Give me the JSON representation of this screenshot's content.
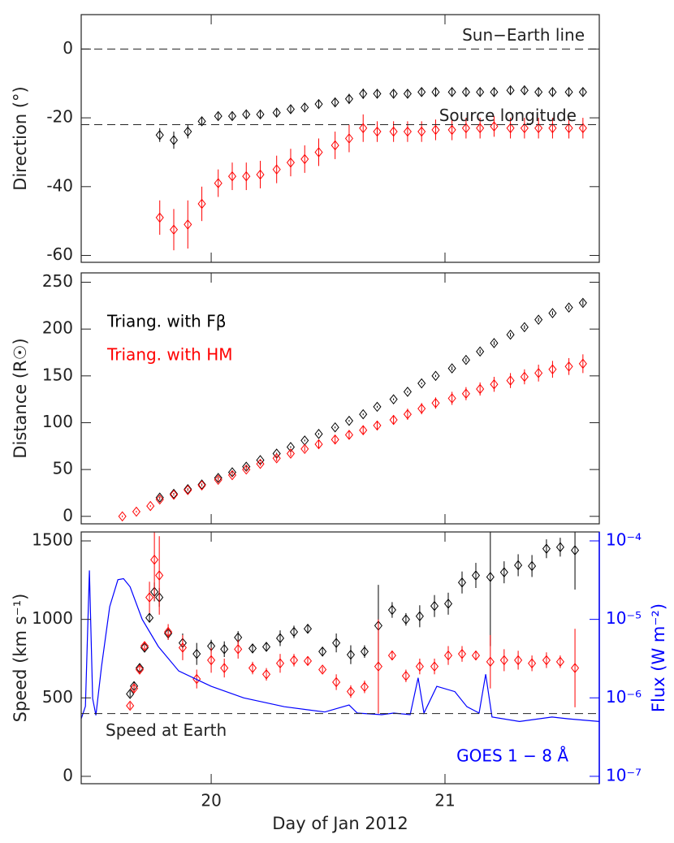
{
  "chart_data": [
    {
      "type": "scatter",
      "ylabel": "Direction (°)",
      "xlim": [
        19.444,
        21.66
      ],
      "xticks": [
        20,
        21
      ],
      "ylim": [
        -62,
        10
      ],
      "yticks": [
        -60,
        -40,
        -20,
        0
      ],
      "reference_lines": [
        {
          "value": 0,
          "label": "Sun−Earth line"
        },
        {
          "value": -22,
          "label": "Source longitude"
        }
      ],
      "series": [
        {
          "color": "#000000",
          "x": [
            19.78,
            19.84,
            19.9,
            19.96,
            20.03,
            20.09,
            20.15,
            20.21,
            20.28,
            20.34,
            20.4,
            20.46,
            20.53,
            20.59,
            20.65,
            20.71,
            20.78,
            20.84,
            20.9,
            20.96,
            21.03,
            21.09,
            21.15,
            21.21,
            21.28,
            21.34,
            21.4,
            21.46,
            21.53,
            21.59
          ],
          "values": [
            -25,
            -26.5,
            -24,
            -21,
            -19.5,
            -19.5,
            -19,
            -19,
            -18.5,
            -17.5,
            -17,
            -16,
            -15.5,
            -14.5,
            -13,
            -13,
            -13,
            -13,
            -12.5,
            -12.5,
            -12.5,
            -12.5,
            -12.5,
            -12.5,
            -12,
            -12,
            -12.5,
            -12.5,
            -12.5,
            -12.5
          ],
          "errors": [
            2,
            2.5,
            2,
            1,
            1,
            1,
            1,
            1,
            1,
            1,
            1,
            1,
            1,
            1.5,
            1.5,
            1,
            1,
            1,
            1,
            1,
            1,
            1,
            1,
            1,
            1,
            1,
            1,
            1,
            1,
            1
          ]
        },
        {
          "color": "#ff0000",
          "x": [
            19.78,
            19.84,
            19.9,
            19.96,
            20.03,
            20.09,
            20.15,
            20.21,
            20.28,
            20.34,
            20.4,
            20.46,
            20.53,
            20.59,
            20.65,
            20.71,
            20.78,
            20.84,
            20.9,
            20.96,
            21.03,
            21.09,
            21.15,
            21.21,
            21.28,
            21.34,
            21.4,
            21.46,
            21.53,
            21.59
          ],
          "values": [
            -49,
            -52.5,
            -51,
            -45,
            -39,
            -37,
            -37,
            -36.5,
            -35,
            -33,
            -32,
            -30,
            -28,
            -26,
            -23,
            -24,
            -24,
            -24,
            -24,
            -23.5,
            -23.5,
            -23,
            -23,
            -22.5,
            -23,
            -23,
            -23,
            -23,
            -23,
            -23
          ],
          "errors": [
            5,
            6,
            7,
            5,
            4,
            4,
            4,
            4,
            4,
            4,
            4,
            4,
            4,
            4,
            4,
            3,
            3,
            3,
            3,
            3,
            3,
            3,
            3,
            3,
            3,
            3,
            3,
            3,
            3,
            3
          ]
        }
      ]
    },
    {
      "type": "scatter",
      "ylabel": "Distance (R☉)",
      "xlim": [
        19.444,
        21.66
      ],
      "xticks": [
        20,
        21
      ],
      "ylim": [
        -8,
        260
      ],
      "yticks": [
        0,
        50,
        100,
        150,
        200,
        250
      ],
      "series": [
        {
          "name": "Triang. with Fβ",
          "color": "#000000",
          "x": [
            19.78,
            19.84,
            19.9,
            19.96,
            20.03,
            20.09,
            20.15,
            20.21,
            20.28,
            20.34,
            20.4,
            20.46,
            20.53,
            20.59,
            20.65,
            20.71,
            20.78,
            20.84,
            20.9,
            20.96,
            21.03,
            21.09,
            21.15,
            21.21,
            21.28,
            21.34,
            21.4,
            21.46,
            21.53,
            21.59
          ],
          "values": [
            20,
            24,
            29,
            34,
            41,
            47,
            53,
            60,
            67,
            74,
            81,
            88,
            95,
            102,
            109,
            117,
            125,
            133,
            142,
            150,
            158,
            167,
            176,
            185,
            194,
            202,
            210,
            217,
            223,
            228
          ],
          "errors": [
            1,
            1,
            1,
            1,
            1,
            1,
            1,
            1,
            1,
            1,
            1,
            1,
            1,
            1,
            1,
            1,
            1,
            1,
            1,
            1,
            2,
            2,
            2,
            2,
            2,
            2,
            2,
            2,
            2,
            3
          ]
        },
        {
          "name": "Triang. with HM",
          "color": "#ff0000",
          "x": [
            19.62,
            19.68,
            19.74,
            19.78,
            19.84,
            19.9,
            19.96,
            20.03,
            20.09,
            20.15,
            20.21,
            20.28,
            20.34,
            20.4,
            20.46,
            20.53,
            20.59,
            20.65,
            20.71,
            20.78,
            20.84,
            20.9,
            20.96,
            21.03,
            21.09,
            21.15,
            21.21,
            21.28,
            21.34,
            21.4,
            21.46,
            21.53,
            21.59
          ],
          "values": [
            0,
            5,
            11,
            18,
            23,
            28,
            33,
            39,
            44,
            50,
            56,
            62,
            67,
            72,
            77,
            82,
            87,
            92,
            97,
            103,
            109,
            115,
            121,
            126,
            131,
            136,
            141,
            145,
            149,
            153,
            157,
            160,
            163
          ],
          "errors": [
            1,
            1,
            1,
            1,
            1,
            1,
            1,
            2,
            2,
            2,
            2,
            3,
            3,
            3,
            4,
            4,
            4,
            5,
            5,
            5,
            6,
            6,
            6,
            7,
            7,
            7,
            8,
            8,
            8,
            9,
            9,
            9,
            10
          ]
        }
      ]
    },
    {
      "type": "scatter",
      "ylabel": "Speed (km s⁻¹)",
      "y2label": "Flux (W m⁻²)",
      "xlabel": "Day of Jan 2012",
      "xlim": [
        19.444,
        21.66
      ],
      "xticks": [
        20,
        21
      ],
      "ylim": [
        -47,
        1557
      ],
      "yticks": [
        0,
        500,
        1000,
        1500
      ],
      "y2lim": [
        8.05e-08,
        0.00013
      ],
      "y2log": true,
      "y2ticks": [
        {
          "value": 1e-07,
          "label": "10⁻⁷"
        },
        {
          "value": 1e-06,
          "label": "10⁻⁶"
        },
        {
          "value": 1e-05,
          "label": "10⁻⁵"
        },
        {
          "value": 0.0001,
          "label": "10⁻⁴"
        }
      ],
      "reference_lines": [
        {
          "value": 400,
          "label": "Speed at Earth"
        }
      ],
      "series": [
        {
          "color": "#000000",
          "x": [
            19.653,
            19.67,
            19.694,
            19.715,
            19.736,
            19.757,
            19.778,
            19.816,
            19.878,
            19.938,
            20.0,
            20.056,
            20.115,
            20.177,
            20.236,
            20.295,
            20.354,
            20.413,
            20.476,
            20.535,
            20.597,
            20.656,
            20.715,
            20.774,
            20.833,
            20.892,
            20.955,
            21.014,
            21.073,
            21.132,
            21.194,
            21.253,
            21.313,
            21.372,
            21.434,
            21.493,
            21.556
          ],
          "values": [
            525,
            575,
            690,
            820,
            1010,
            1175,
            1140,
            910,
            850,
            780,
            830,
            810,
            885,
            815,
            825,
            880,
            920,
            940,
            795,
            850,
            775,
            795,
            960,
            1060,
            1000,
            1020,
            1085,
            1100,
            1235,
            1280,
            1270,
            1300,
            1345,
            1340,
            1450,
            1460,
            1440
          ],
          "errors": [
            20,
            25,
            30,
            30,
            30,
            60,
            60,
            40,
            60,
            70,
            40,
            50,
            40,
            30,
            30,
            50,
            40,
            30,
            30,
            60,
            60,
            40,
            260,
            50,
            40,
            70,
            70,
            70,
            70,
            80,
            440,
            70,
            70,
            70,
            60,
            60,
            250
          ]
        },
        {
          "color": "#ff0000",
          "x": [
            19.653,
            19.67,
            19.694,
            19.715,
            19.736,
            19.757,
            19.778,
            19.816,
            19.878,
            19.938,
            20.0,
            20.056,
            20.115,
            20.177,
            20.236,
            20.295,
            20.354,
            20.413,
            20.476,
            20.535,
            20.597,
            20.656,
            20.715,
            20.774,
            20.833,
            20.892,
            20.955,
            21.014,
            21.073,
            21.132,
            21.194,
            21.253,
            21.313,
            21.372,
            21.434,
            21.493,
            21.556
          ],
          "values": [
            450,
            560,
            680,
            830,
            1140,
            1380,
            1280,
            920,
            820,
            620,
            740,
            690,
            810,
            690,
            650,
            720,
            740,
            735,
            680,
            600,
            540,
            570,
            700,
            770,
            640,
            700,
            700,
            770,
            780,
            770,
            730,
            740,
            740,
            720,
            740,
            730,
            690
          ],
          "errors": [
            20,
            30,
            30,
            30,
            100,
            260,
            250,
            50,
            80,
            60,
            80,
            60,
            60,
            40,
            40,
            60,
            40,
            30,
            20,
            50,
            40,
            40,
            300,
            30,
            40,
            50,
            50,
            60,
            50,
            30,
            170,
            70,
            60,
            50,
            50,
            40,
            250
          ]
        },
        {
          "name": "GOES 1 − 8 Å",
          "color": "#0000ff",
          "type": "line",
          "axis": "y2",
          "x": [
            19.444,
            19.462,
            19.479,
            19.493,
            19.507,
            19.531,
            19.566,
            19.601,
            19.625,
            19.653,
            19.705,
            19.774,
            19.861,
            20.0,
            20.139,
            20.313,
            20.486,
            20.59,
            20.625,
            20.729,
            20.781,
            20.851,
            20.885,
            20.91,
            20.965,
            21.042,
            21.094,
            21.146,
            21.174,
            21.201,
            21.319,
            21.458,
            21.528,
            21.66
          ],
          "values": [
            5.4e-07,
            7.8e-07,
            4.2e-05,
            9.8e-07,
            6e-07,
            2.5e-06,
            1.45e-05,
            3.2e-05,
            3.3e-05,
            2.6e-05,
            1e-05,
            4.5e-06,
            2.2e-06,
            1.4e-06,
            1e-06,
            7.7e-07,
            6.6e-07,
            8.1e-07,
            6.4e-07,
            6.1e-07,
            6.4e-07,
            6.1e-07,
            1.8e-06,
            6.4e-07,
            1.4e-06,
            1.2e-06,
            7.7e-07,
            6.4e-07,
            2e-06,
            5.7e-07,
            5e-07,
            5.7e-07,
            5.4e-07,
            5e-07
          ]
        }
      ]
    }
  ]
}
